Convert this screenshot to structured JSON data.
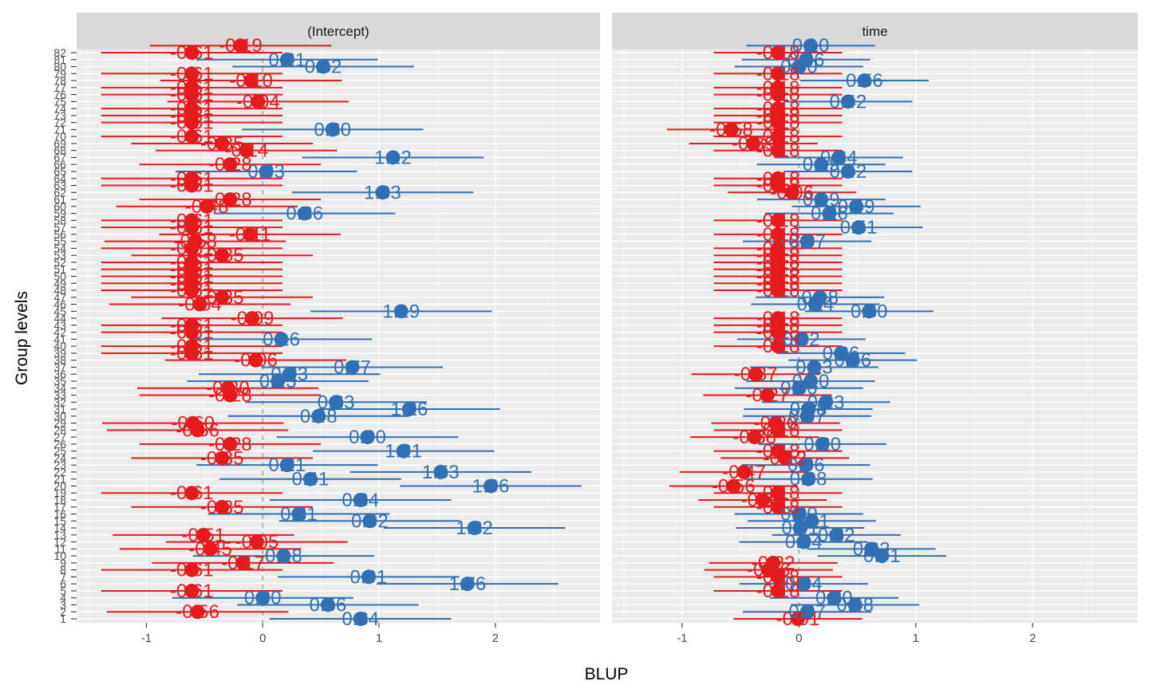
{
  "chart_data": {
    "type": "scatter",
    "ylabel": "Group levels",
    "xlabel": "BLUP",
    "xlim": [
      -1.6,
      2.9
    ],
    "xticks": [
      -1,
      0,
      1,
      2
    ],
    "colors": {
      "negative": "#e41a1c",
      "positive": "#3070b3"
    },
    "levels": [
      "1",
      "2",
      "3",
      "4",
      "5",
      "6",
      "7",
      "8",
      "9",
      "10",
      "11",
      "12",
      "13",
      "14",
      "15",
      "16",
      "17",
      "18",
      "19",
      "20",
      "21",
      "22",
      "23",
      "24",
      "25",
      "26",
      "27",
      "28",
      "29",
      "30",
      "31",
      "32",
      "33",
      "34",
      "35",
      "36",
      "37",
      "38",
      "39",
      "40",
      "41",
      "42",
      "43",
      "44",
      "45",
      "46",
      "47",
      "48",
      "49",
      "50",
      "51",
      "52",
      "53",
      "54",
      "55",
      "56",
      "57",
      "58",
      "59",
      "60",
      "61",
      "62",
      "63",
      "64",
      "65",
      "66",
      "67",
      "68",
      "69",
      "70",
      "71",
      "72",
      "73",
      "74",
      "75",
      "76",
      "77",
      "78",
      "79",
      "80",
      "81",
      "82"
    ],
    "panels": [
      {
        "title": "(Intercept)",
        "ci_halfwidth": 0.78,
        "estimates": [
          0.84,
          -0.56,
          0.56,
          0.0,
          -0.61,
          1.76,
          0.91,
          -0.61,
          -0.17,
          0.18,
          -0.45,
          -0.05,
          -0.51,
          1.82,
          0.92,
          0.31,
          -0.35,
          0.84,
          -0.61,
          1.96,
          0.41,
          1.53,
          0.21,
          -0.35,
          1.21,
          -0.28,
          0.9,
          -0.56,
          -0.6,
          0.48,
          1.26,
          0.63,
          -0.28,
          -0.3,
          0.13,
          0.23,
          0.77,
          -0.06,
          -0.61,
          -0.61,
          0.16,
          -0.61,
          -0.61,
          -0.09,
          1.19,
          -0.54,
          -0.35,
          -0.61,
          -0.61,
          -0.61,
          -0.61,
          -0.61,
          -0.35,
          -0.61,
          -0.58,
          -0.11,
          -0.61,
          -0.61,
          0.36,
          -0.48,
          -0.28,
          1.03,
          -0.61,
          -0.61,
          0.03,
          -0.28,
          1.12,
          -0.14,
          -0.35,
          -0.61,
          0.6,
          -0.61,
          -0.61,
          -0.61,
          -0.04,
          -0.61,
          -0.61,
          -0.1,
          -0.61,
          0.52,
          0.21,
          -0.61,
          -0.19
        ],
        "labels": [
          "0.84",
          "-0.56",
          "0.56",
          "0.00",
          "-0.61",
          "1.76",
          "0.91",
          "-0.61",
          "-0.17",
          "0.18",
          "-0.45",
          "-0.05",
          "-0.51",
          "1.82",
          "0.92",
          "0.31",
          "-0.35",
          "0.84",
          "-0.61",
          "1.96",
          "0.41",
          "1.53",
          "0.21",
          "-0.35",
          "1.21",
          "-0.28",
          "0.90",
          "-0.56",
          "-0.60",
          "0.48",
          "1.26",
          "0.63",
          "-0.28",
          "-0.30",
          "0.13",
          "0.23",
          "0.77",
          "-0.06",
          "-0.61",
          "-0.61",
          "0.16",
          "-0.61",
          "-0.61",
          "-0.09",
          "1.19",
          "-0.54",
          "-0.35",
          "-0.61",
          "-0.61",
          "-0.61",
          "-0.61",
          "-0.61",
          "-0.35",
          "-0.61",
          "-0.58",
          "-0.11",
          "-0.61",
          "-0.61",
          "0.36",
          "-0.48",
          "-0.28",
          "1.03",
          "-0.61",
          "-0.61",
          "0.03",
          "-0.28",
          "1.12",
          "-0.14",
          "-0.35",
          "-0.61",
          "0.60",
          "-0.61",
          "-0.61",
          "-0.61",
          "-0.04",
          "-0.61",
          "-0.61",
          "-0.10",
          "-0.61",
          "0.52",
          "0.21",
          "-0.61",
          "-0.19"
        ]
      },
      {
        "title": "time",
        "ci_halfwidth": 0.55,
        "estimates": [
          -0.01,
          0.07,
          0.48,
          0.3,
          -0.18,
          0.04,
          -0.18,
          -0.26,
          -0.22,
          0.71,
          0.62,
          0.04,
          0.32,
          0.01,
          0.11,
          0.0,
          -0.18,
          -0.31,
          -0.18,
          -0.56,
          0.08,
          -0.47,
          0.06,
          -0.12,
          -0.18,
          0.2,
          -0.38,
          -0.18,
          -0.2,
          0.07,
          0.08,
          0.23,
          -0.27,
          0.0,
          0.1,
          -0.37,
          0.13,
          0.46,
          0.36,
          -0.18,
          0.02,
          -0.18,
          -0.18,
          -0.18,
          0.6,
          0.14,
          0.18,
          -0.18,
          -0.18,
          -0.18,
          -0.18,
          -0.18,
          -0.18,
          -0.18,
          0.07,
          -0.18,
          0.51,
          -0.18,
          0.26,
          0.49,
          0.19,
          -0.06,
          -0.18,
          -0.18,
          0.42,
          0.19,
          0.34,
          -0.18,
          -0.39,
          -0.18,
          -0.58,
          -0.18,
          -0.18,
          -0.18,
          0.42,
          -0.18,
          -0.18,
          0.56,
          -0.18,
          0.0,
          0.06,
          -0.18,
          0.1
        ],
        "labels": [
          "-0.01",
          "0.07",
          "0.48",
          "0.30",
          "-0.18",
          "0.04",
          "-0.18",
          "-0.26",
          "-0.22",
          "0.71",
          "0.62",
          "0.04",
          "0.32",
          "0.01",
          "0.11",
          "0.00",
          "-0.18",
          "-0.31",
          "-0.18",
          "-0.56",
          "0.08",
          "-0.47",
          "0.06",
          "-0.12",
          "-0.18",
          "0.20",
          "-0.38",
          "-0.18",
          "-0.20",
          "0.07",
          "0.08",
          "0.23",
          "-0.27",
          "0.00",
          "0.10",
          "-0.37",
          "0.13",
          "0.46",
          "0.36",
          "-0.18",
          "0.02",
          "-0.18",
          "-0.18",
          "-0.18",
          "0.60",
          "0.14",
          "0.18",
          "-0.18",
          "-0.18",
          "-0.18",
          "-0.18",
          "-0.18",
          "-0.18",
          "-0.18",
          "0.07",
          "-0.18",
          "0.51",
          "-0.18",
          "0.26",
          "0.49",
          "0.19",
          "-0.06",
          "-0.18",
          "-0.18",
          "0.42",
          "0.19",
          "0.34",
          "-0.18",
          "-0.39",
          "-0.18",
          "-0.58",
          "-0.18",
          "-0.18",
          "-0.18",
          "0.42",
          "-0.18",
          "-0.18",
          "0.56",
          "-0.18",
          "0.00",
          "0.06",
          "-0.18",
          "0.10"
        ]
      }
    ]
  }
}
